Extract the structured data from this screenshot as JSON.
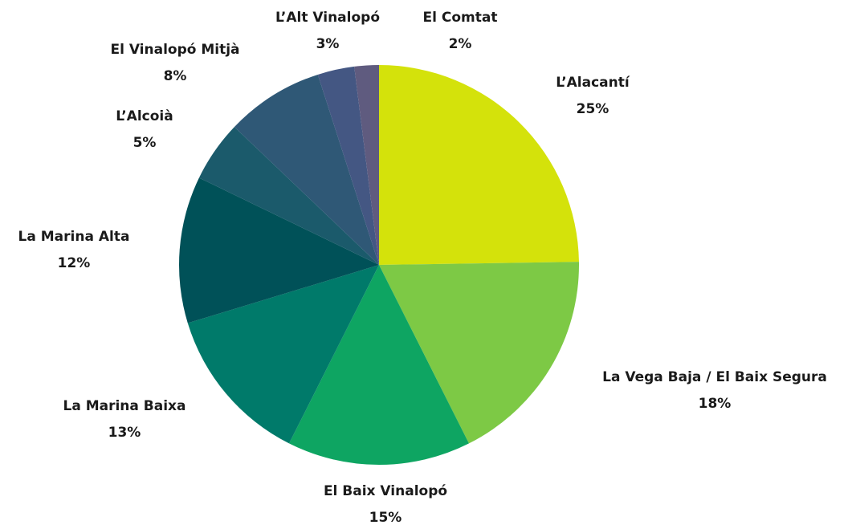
{
  "chart_data": {
    "type": "pie",
    "categories": [
      "L’Alacantí",
      "La Vega Baja / El Baix Segura",
      "El Baix Vinalopó",
      "La Marina Baixa",
      "La Marina Alta",
      "L’Alcoià",
      "El Vinalopó Mitjà",
      "L’Alt Vinalopó",
      "El Comtat"
    ],
    "values": [
      25,
      18,
      15,
      13,
      12,
      5,
      8,
      3,
      2
    ],
    "value_labels": [
      "25%",
      "18%",
      "15%",
      "13%",
      "12%",
      "5%",
      "8%",
      "3%",
      "2%"
    ],
    "colors": [
      "#d4e20b",
      "#7dc945",
      "#0ea562",
      "#007a6a",
      "#005158",
      "#1b5a6b",
      "#2f5876",
      "#445783",
      "#5f5b7f"
    ]
  }
}
